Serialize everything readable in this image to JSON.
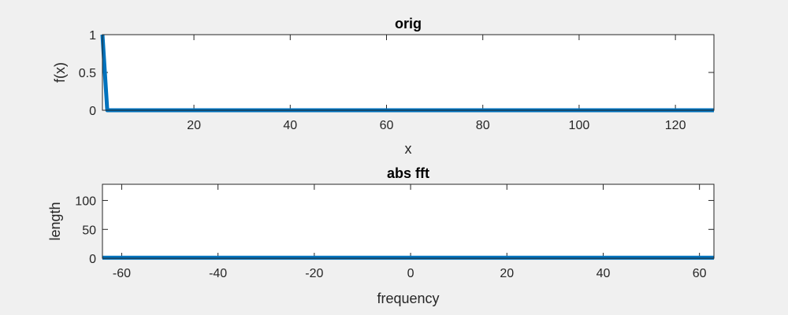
{
  "chart_data": [
    {
      "type": "line",
      "title": "orig",
      "xlabel": "x",
      "ylabel": "f(x)",
      "xlim": [
        1,
        128
      ],
      "ylim": [
        0,
        1
      ],
      "xticks": [
        20,
        40,
        60,
        80,
        100,
        120
      ],
      "xtick_labels": [
        "20",
        "40",
        "60",
        "80",
        "100",
        "120"
      ],
      "yticks": [
        0,
        0.5,
        1
      ],
      "ytick_labels": [
        "0",
        "0.5",
        "1"
      ],
      "grid": false,
      "color": "#0072BD",
      "x": [
        1,
        2,
        128
      ],
      "y": [
        1,
        0,
        0
      ]
    },
    {
      "type": "line",
      "title": "abs fft",
      "xlabel": "frequency",
      "ylabel": "length",
      "xlim": [
        -64,
        63
      ],
      "ylim": [
        0,
        128
      ],
      "xticks": [
        -60,
        -40,
        -20,
        0,
        20,
        40,
        60
      ],
      "xtick_labels": [
        "-60",
        "-40",
        "-20",
        "0",
        "20",
        "40",
        "60"
      ],
      "yticks": [
        0,
        50,
        100
      ],
      "ytick_labels": [
        "0",
        "50",
        "100"
      ],
      "grid": false,
      "color": "#0072BD",
      "x": [
        -64,
        63
      ],
      "y": [
        1,
        1
      ]
    }
  ]
}
